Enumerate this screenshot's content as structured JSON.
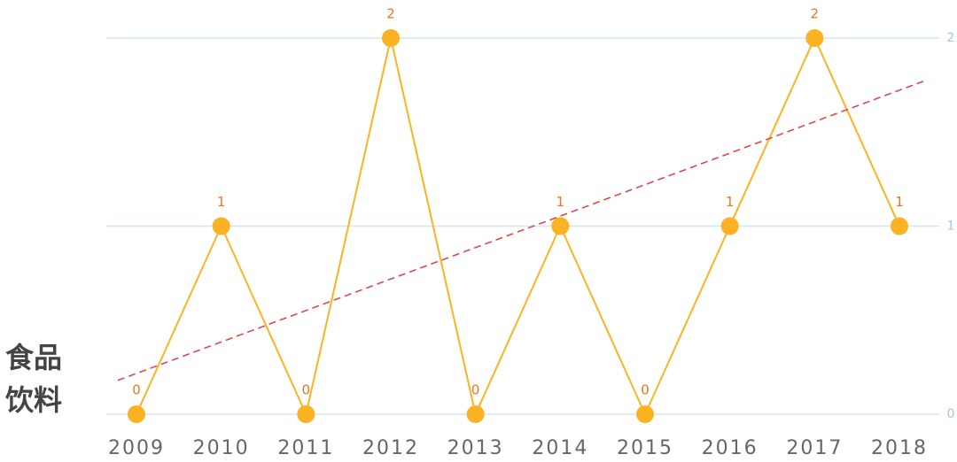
{
  "chart_data": {
    "type": "line",
    "y_label_lines": [
      "食品",
      "饮料"
    ],
    "categories": [
      "2009",
      "2010",
      "2011",
      "2012",
      "2013",
      "2014",
      "2015",
      "2016",
      "2017",
      "2018"
    ],
    "series": [
      {
        "color": "#fbb323",
        "values": [
          0,
          1,
          0,
          2,
          0,
          1,
          0,
          1,
          2,
          1
        ]
      }
    ],
    "trend_line": {
      "color": "#e04848",
      "values": [
        0.18,
        1.77
      ]
    },
    "ylim": [
      0,
      2
    ],
    "yticks": [
      0,
      1,
      2
    ],
    "grid": true,
    "y_axis_side": "right"
  }
}
